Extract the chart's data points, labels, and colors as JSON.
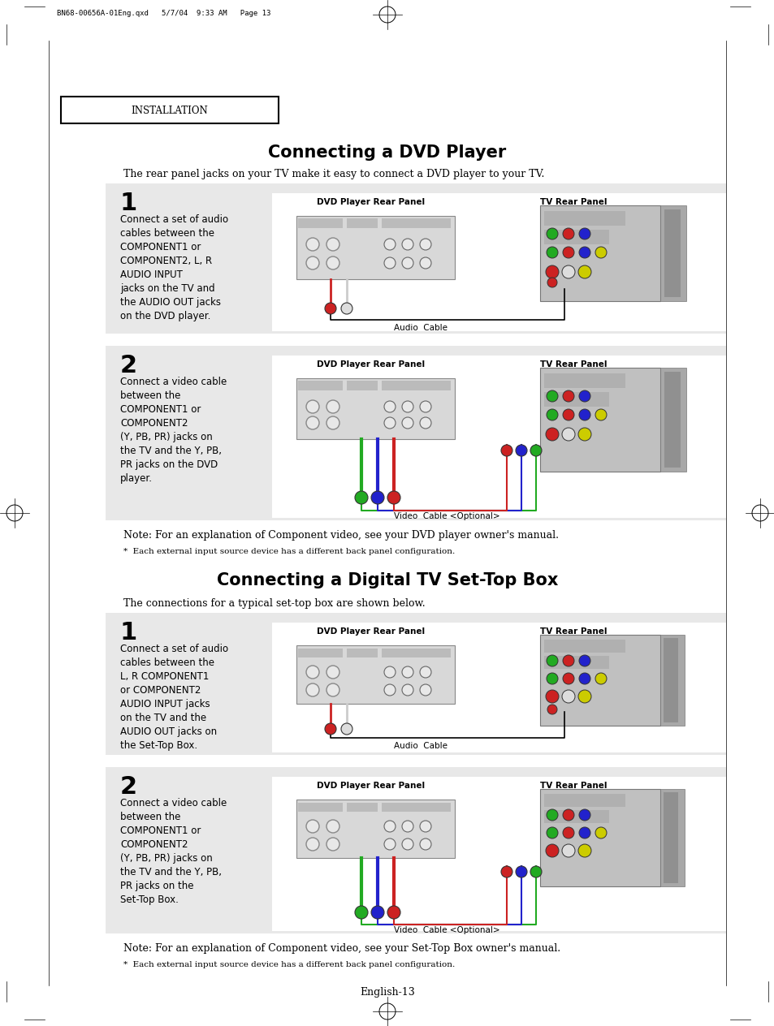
{
  "bg_color": "#ffffff",
  "page_header": "BN68-00656A-01Eng.qxd   5/7/04  9:33 AM   Page 13",
  "installation_label": "INSTALLATION",
  "section1_title": "Connecting a DVD Player",
  "section1_intro": "The rear panel jacks on your TV make it easy to connect a DVD player to your TV.",
  "section2_title": "Connecting a Digital TV Set-Top Box",
  "section2_intro": "The connections for a typical set-top box are shown below.",
  "footer": "English-13",
  "dvd_step1_text": "Connect a set of audio\ncables between the\nCOMPONENT1 or\nCOMPONENT2, L, R\nAUDIO INPUT\njacks on the TV and\nthe AUDIO OUT jacks\non the DVD player.",
  "dvd_step2_text": "Connect a video cable\nbetween the\nCOMPONENT1 or\nCOMPONENT2\n(Y, PB, PR) jacks on\nthe TV and the Y, PB,\nPR jacks on the DVD\nplayer.",
  "dvd_note": "Note: For an explanation of Component video, see your DVD player owner's manual.",
  "dvd_footnote": "*  Each external input source device has a different back panel configuration.",
  "stb_step1_text": "Connect a set of audio\ncables between the\nL, R COMPONENT1\nor COMPONENT2\nAUDIO INPUT jacks\non the TV and the\nAUDIO OUT jacks on\nthe Set-Top Box.",
  "stb_step2_text": "Connect a video cable\nbetween the\nCOMPONENT1 or\nCOMPONENT2\n(Y, PB, PR) jacks on\nthe TV and the Y, PB,\nPR jacks on the\nSet-Top Box.",
  "stb_note": "Note: For an explanation of Component video, see your Set-Top Box owner's manual.",
  "stb_footnote": "*  Each external input source device has a different back panel configuration.",
  "dvd_label": "DVD Player Rear Panel",
  "tv_label": "TV Rear Panel",
  "audio_cable_label": "Audio  Cable",
  "video_cable_label": "Video  Cable <Optional>",
  "box_bg": "#e8e8e8",
  "panel_bg": "#d0d0d0"
}
